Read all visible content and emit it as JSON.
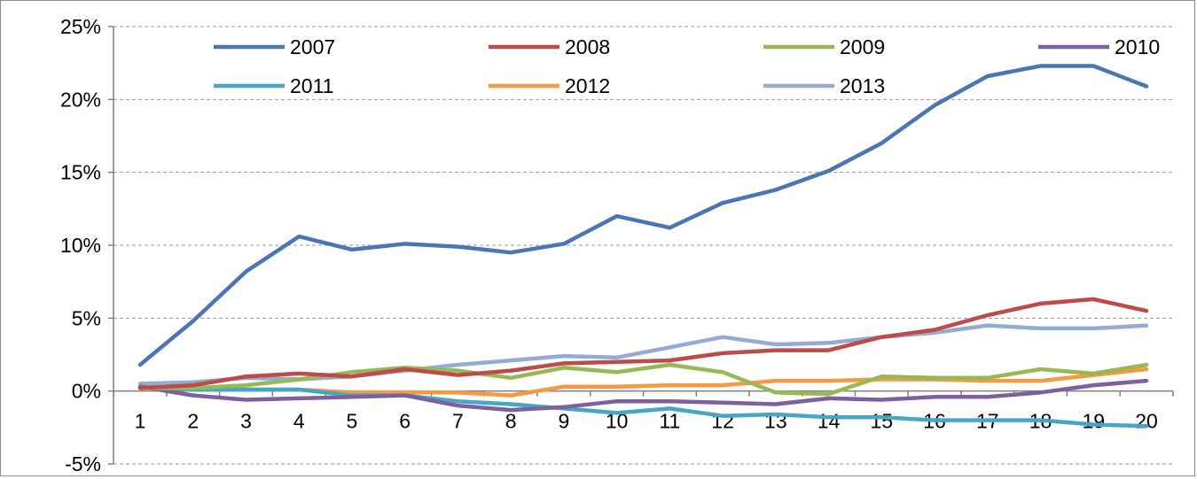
{
  "chart_data": {
    "type": "line",
    "title": "",
    "xlabel": "",
    "ylabel": "",
    "x": [
      1,
      2,
      3,
      4,
      5,
      6,
      7,
      8,
      9,
      10,
      11,
      12,
      13,
      14,
      15,
      16,
      17,
      18,
      19,
      20
    ],
    "x_tick_labels": [
      "1",
      "2",
      "3",
      "4",
      "5",
      "6",
      "7",
      "8",
      "9",
      "10",
      "11",
      "12",
      "13",
      "14",
      "15",
      "16",
      "17",
      "18",
      "19",
      "20"
    ],
    "ylim": [
      -5,
      25
    ],
    "y_ticks": [
      -5,
      0,
      5,
      10,
      15,
      20,
      25
    ],
    "y_tick_labels": [
      "-5%",
      "0%",
      "5%",
      "10%",
      "15%",
      "20%",
      "25%"
    ],
    "y_unit": "%",
    "grid": "horizontal dashed",
    "legend_position": "top-left",
    "series": [
      {
        "name": "2007",
        "color": "#4a76b4",
        "values": [
          1.8,
          4.8,
          8.2,
          10.6,
          9.7,
          10.1,
          9.9,
          9.5,
          10.1,
          12.0,
          11.2,
          12.9,
          13.8,
          15.1,
          17.0,
          19.6,
          21.6,
          22.3,
          22.3,
          20.9
        ]
      },
      {
        "name": "2008",
        "color": "#bd4b48",
        "values": [
          0.2,
          0.4,
          1.0,
          1.2,
          1.0,
          1.5,
          1.1,
          1.4,
          1.9,
          2.0,
          2.1,
          2.6,
          2.8,
          2.8,
          3.7,
          4.2,
          5.2,
          6.0,
          6.3,
          5.5
        ]
      },
      {
        "name": "2009",
        "color": "#97b955",
        "values": [
          0.2,
          0.2,
          0.4,
          0.8,
          1.3,
          1.6,
          1.4,
          0.9,
          1.6,
          1.3,
          1.8,
          1.3,
          -0.1,
          -0.2,
          1.0,
          0.9,
          0.9,
          1.5,
          1.2,
          1.8
        ]
      },
      {
        "name": "2010",
        "color": "#7d60a0",
        "values": [
          0.3,
          -0.3,
          -0.6,
          -0.5,
          -0.4,
          -0.3,
          -1.0,
          -1.3,
          -1.1,
          -0.7,
          -0.7,
          -0.8,
          -0.9,
          -0.5,
          -0.6,
          -0.4,
          -0.4,
          -0.1,
          0.4,
          0.7
        ]
      },
      {
        "name": "2011",
        "color": "#46a7c5",
        "values": [
          0.3,
          0.1,
          0.1,
          0.1,
          -0.3,
          -0.3,
          -0.7,
          -0.9,
          -1.2,
          -1.5,
          -1.2,
          -1.7,
          -1.6,
          -1.8,
          -1.8,
          -2.0,
          -2.0,
          -2.0,
          -2.3,
          -2.4
        ]
      },
      {
        "name": "2012",
        "color": "#f59a43",
        "values": [
          0.3,
          0.2,
          0.1,
          0.1,
          -0.1,
          -0.1,
          -0.1,
          -0.3,
          0.3,
          0.3,
          0.4,
          0.4,
          0.7,
          0.7,
          0.8,
          0.8,
          0.7,
          0.7,
          1.1,
          1.5
        ]
      },
      {
        "name": "2013",
        "color": "#94abd5",
        "values": [
          0.5,
          0.6,
          0.9,
          0.8,
          1.0,
          1.4,
          1.8,
          2.1,
          2.4,
          2.3,
          3.0,
          3.7,
          3.2,
          3.3,
          3.7,
          4.0,
          4.5,
          4.3,
          4.3,
          4.5
        ]
      }
    ]
  }
}
